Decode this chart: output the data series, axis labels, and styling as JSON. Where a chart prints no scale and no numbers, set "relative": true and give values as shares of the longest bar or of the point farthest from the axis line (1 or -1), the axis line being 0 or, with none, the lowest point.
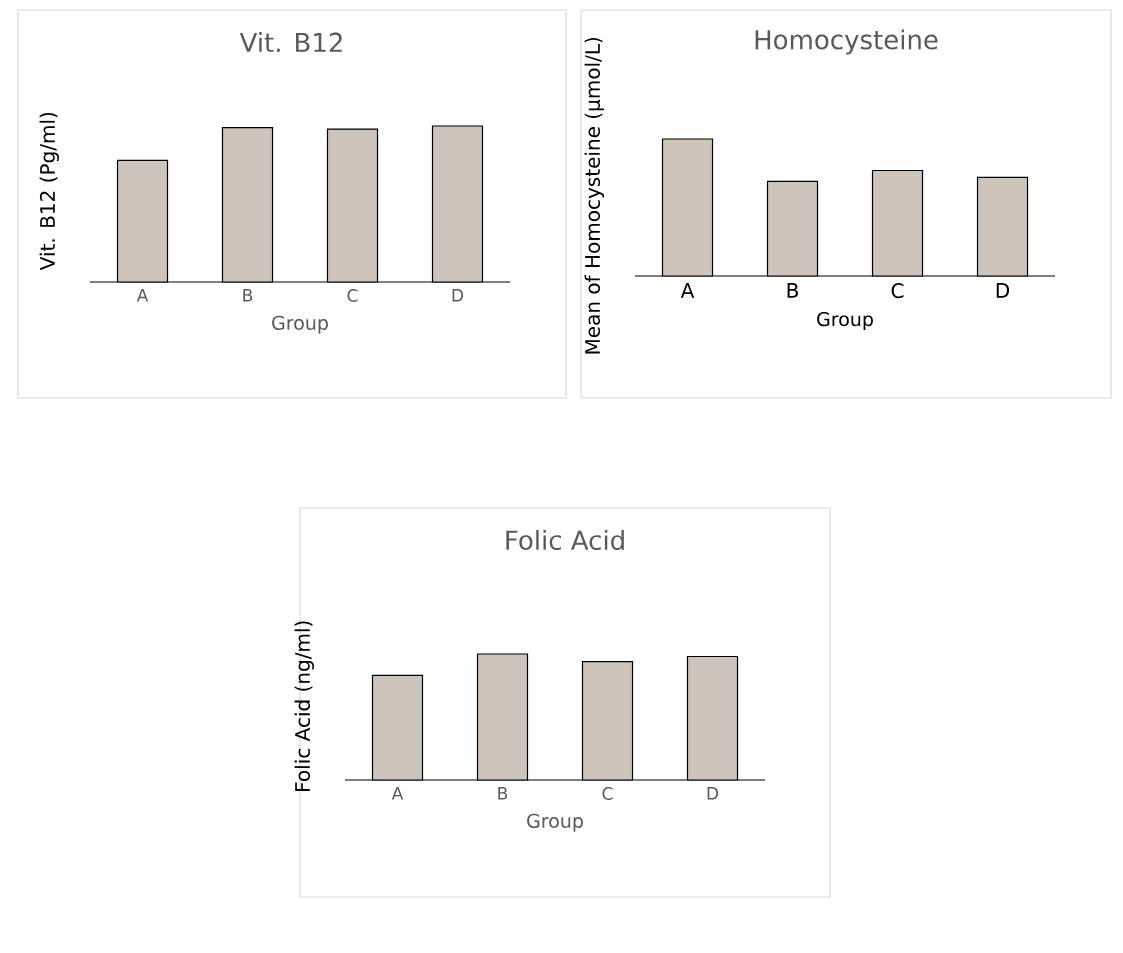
{
  "chart_data": [
    {
      "type": "bar",
      "title": "Vit. B12",
      "xlabel": "Group",
      "ylabel": "Vit. B12 (Pg/ml)",
      "categories": [
        "A",
        "B",
        "C",
        "D"
      ],
      "values": [
        0.78,
        0.99,
        0.98,
        1
      ],
      "color": "#cdc5bb",
      "relative": true
    },
    {
      "type": "bar",
      "title": "Homocysteine",
      "xlabel": "Group",
      "ylabel": "Mean of Homocysteine (µmol/L)",
      "categories": [
        "A",
        "B",
        "C",
        "D"
      ],
      "values": [
        1,
        0.69,
        0.77,
        0.72
      ],
      "color": "#cdc5bb",
      "relative": true
    },
    {
      "type": "bar",
      "title": "Folic Acid",
      "xlabel": "Group",
      "ylabel": "Folic Acid  (ng/ml)",
      "categories": [
        "A",
        "B",
        "C",
        "D"
      ],
      "values": [
        0.83,
        1,
        0.94,
        0.98
      ],
      "color": "#cdc5bb",
      "relative": true
    }
  ]
}
